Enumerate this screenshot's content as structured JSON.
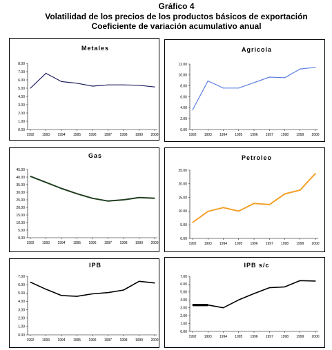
{
  "header": {
    "title": "Gráfico 4",
    "subtitle": "Volatilidad de los precios de los productos básicos de exportación",
    "subtitle2": "Coeficiente de variación acumulativo anual"
  },
  "chart_data": [
    {
      "type": "line",
      "title": "Metales",
      "categories": [
        "1992",
        "1993",
        "1994",
        "1995",
        "1996",
        "1997",
        "1998",
        "1999",
        "2000"
      ],
      "series": [
        {
          "values": [
            5.0,
            6.8,
            5.8,
            5.6,
            5.25,
            5.4,
            5.4,
            5.35,
            5.15
          ]
        }
      ],
      "ylim": [
        0,
        8
      ],
      "yticks": [
        "0.00",
        "1.00",
        "2.00",
        "3.00",
        "4.00",
        "5.00",
        "6.00",
        "7.00",
        "8.00"
      ],
      "color": "#1a1a5e"
    },
    {
      "type": "line",
      "title": "Agricola",
      "categories": [
        "1992",
        "1993",
        "1994",
        "1995",
        "1996",
        "1997",
        "1998",
        "1999",
        "2000"
      ],
      "series": [
        {
          "values": [
            3.6,
            8.9,
            7.6,
            7.6,
            8.6,
            9.6,
            9.5,
            11.1,
            11.4
          ]
        }
      ],
      "ylim": [
        0,
        12
      ],
      "yticks": [
        "0.00",
        "2.00",
        "4.00",
        "6.00",
        "8.00",
        "10.00",
        "12.00"
      ],
      "color": "#5b7fe0"
    },
    {
      "type": "line",
      "title": "Gas",
      "categories": [
        "1992",
        "1993",
        "1994",
        "1995",
        "1996",
        "1997",
        "1998",
        "1999",
        "2000"
      ],
      "series": [
        {
          "values": [
            40.5,
            36.5,
            32.5,
            29,
            26,
            24.2,
            25,
            26.5,
            26
          ]
        }
      ],
      "ylim": [
        0,
        45
      ],
      "yticks": [
        "0.00",
        "5.00",
        "10.00",
        "15.00",
        "20.00",
        "25.00",
        "30.00",
        "35.00",
        "40.00",
        "45.00"
      ],
      "color": "#1f3d1f"
    },
    {
      "type": "line",
      "title": "Petroleo",
      "categories": [
        "1992",
        "1993",
        "1994",
        "1995",
        "1996",
        "1997",
        "1998",
        "1999",
        "2000"
      ],
      "series": [
        {
          "values": [
            5.8,
            9.9,
            11.3,
            10,
            12.8,
            12.4,
            16.3,
            17.7,
            23.8
          ]
        }
      ],
      "ylim": [
        0,
        25
      ],
      "yticks": [
        "0.00",
        "5.00",
        "10.00",
        "15.00",
        "20.00",
        "25.00"
      ],
      "color": "#f4a12a"
    },
    {
      "type": "line",
      "title": "IPB",
      "categories": [
        "1992",
        "1993",
        "1994",
        "1995",
        "1996",
        "1997",
        "1998",
        "1999",
        "2000"
      ],
      "series": [
        {
          "values": [
            6.3,
            5.45,
            4.7,
            4.6,
            4.9,
            5.05,
            5.35,
            6.4,
            6.2
          ]
        }
      ],
      "ylim": [
        0,
        7
      ],
      "yticks": [
        "0.00",
        "1.00",
        "2.00",
        "3.00",
        "4.00",
        "5.00",
        "6.00",
        "7.00"
      ],
      "color": "#000000"
    },
    {
      "type": "line",
      "title": "IPB s/c",
      "categories": [
        "1992",
        "1993",
        "1994",
        "1995",
        "1996",
        "1997",
        "1998",
        "1999",
        "2000"
      ],
      "series": [
        {
          "values": [
            3.35,
            3.35,
            3.0,
            4.0,
            4.8,
            5.55,
            5.65,
            6.45,
            6.4
          ]
        }
      ],
      "ylim": [
        0,
        7
      ],
      "yticks": [
        "0.00",
        "1.00",
        "2.00",
        "3.00",
        "4.00",
        "5.00",
        "6.00",
        "7.00"
      ],
      "color": "#000000"
    }
  ]
}
